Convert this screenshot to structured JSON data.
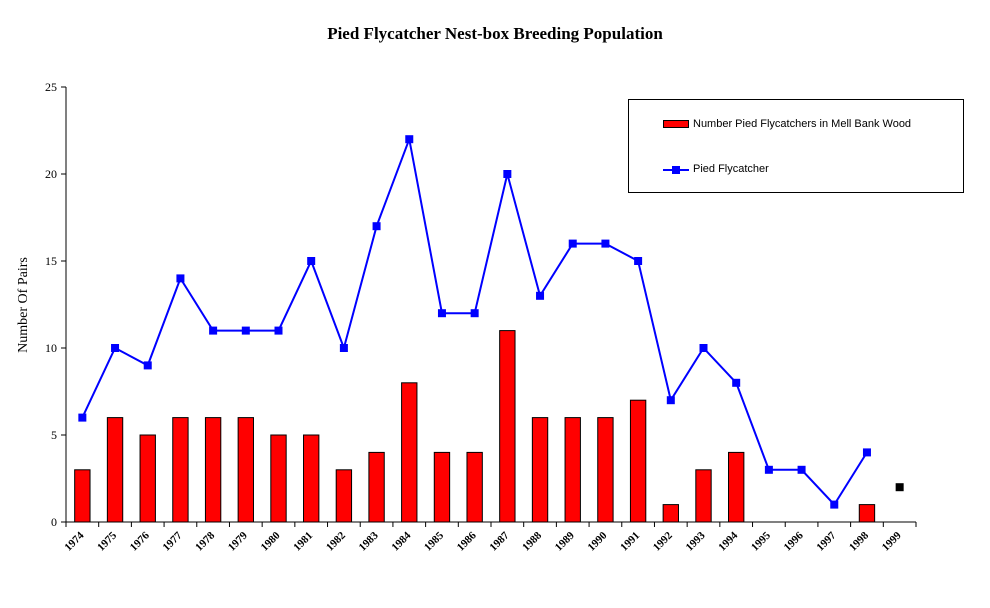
{
  "chart_data": {
    "type": "bar+line",
    "title": "Pied Flycatcher Nest-box Breeding Population",
    "ylabel": "Number Of Pairs",
    "xlabel": "",
    "ylim": [
      0,
      25
    ],
    "yticks": [
      0,
      5,
      10,
      15,
      20,
      25
    ],
    "grid": false,
    "legend_position": "top-right",
    "categories": [
      "1974",
      "1975",
      "1976",
      "1977",
      "1978",
      "1979",
      "1980",
      "1981",
      "1982",
      "1983",
      "1984",
      "1985",
      "1986",
      "1987",
      "1988",
      "1989",
      "1990",
      "1991",
      "1992",
      "1993",
      "1994",
      "1995",
      "1996",
      "1997",
      "1998",
      "1999"
    ],
    "series": [
      {
        "name": "Number Pied Flycatchers in Mell Bank Wood",
        "kind": "bar",
        "color": "#ff0000",
        "values": [
          3,
          6,
          5,
          6,
          6,
          6,
          5,
          5,
          3,
          4,
          8,
          4,
          4,
          11,
          6,
          6,
          6,
          7,
          1,
          3,
          4,
          null,
          null,
          null,
          1,
          null
        ]
      },
      {
        "name": "Pied Flycatcher",
        "kind": "line",
        "color": "#0000ff",
        "values": [
          6,
          10,
          9,
          14,
          11,
          11,
          11,
          15,
          10,
          17,
          22,
          12,
          12,
          20,
          13,
          16,
          16,
          15,
          7,
          10,
          8,
          3,
          3,
          1,
          4,
          null
        ]
      },
      {
        "kind": "point",
        "color": "#000000",
        "values": [
          null,
          null,
          null,
          null,
          null,
          null,
          null,
          null,
          null,
          null,
          null,
          null,
          null,
          null,
          null,
          null,
          null,
          null,
          null,
          null,
          null,
          null,
          null,
          null,
          null,
          2
        ]
      }
    ]
  }
}
